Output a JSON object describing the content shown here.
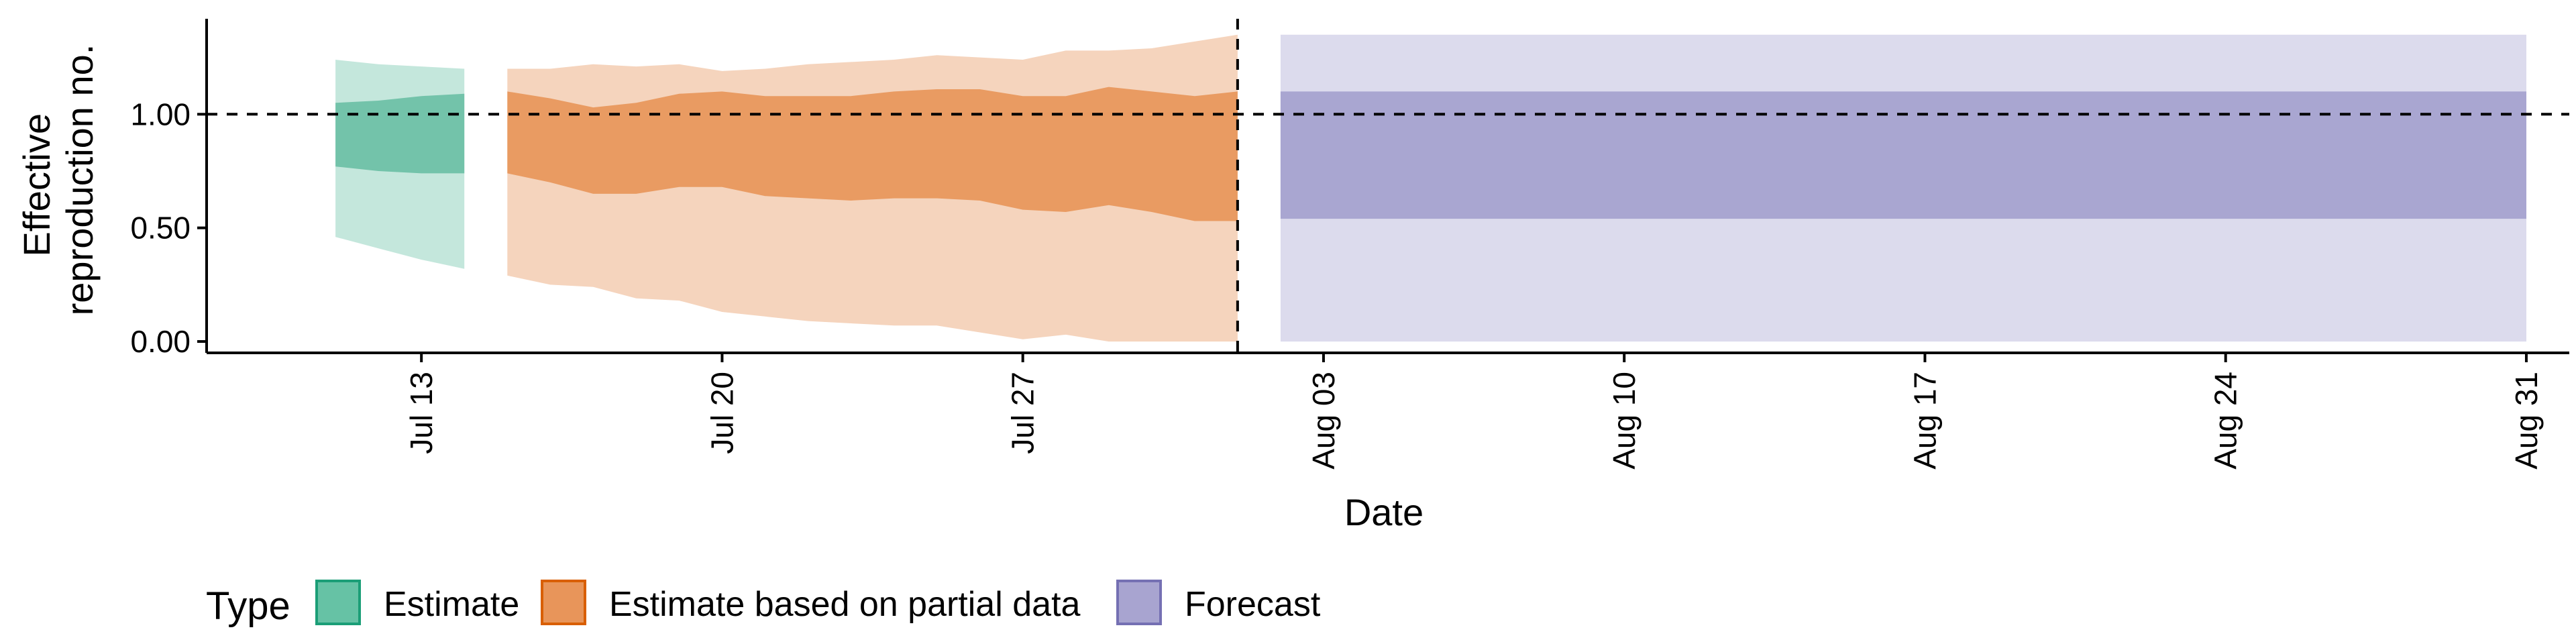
{
  "chart_data": {
    "type": "area",
    "title": "",
    "xlabel": "Date",
    "ylabel_lines": [
      "Effective",
      "reproduction no."
    ],
    "x_axis": {
      "start": "2020-07-08",
      "end": "2020-09-01",
      "ticks": [
        {
          "date": "2020-07-13",
          "label": "Jul 13"
        },
        {
          "date": "2020-07-20",
          "label": "Jul 20"
        },
        {
          "date": "2020-07-27",
          "label": "Jul 27"
        },
        {
          "date": "2020-08-03",
          "label": "Aug 03"
        },
        {
          "date": "2020-08-10",
          "label": "Aug 10"
        },
        {
          "date": "2020-08-17",
          "label": "Aug 17"
        },
        {
          "date": "2020-08-24",
          "label": "Aug 24"
        },
        {
          "date": "2020-08-31",
          "label": "Aug 31"
        }
      ]
    },
    "y_axis": {
      "min": -0.05,
      "max": 1.42,
      "ticks": [
        {
          "value": 0,
          "label": "0.00"
        },
        {
          "value": 0.5,
          "label": "0.50"
        },
        {
          "value": 1.0,
          "label": "1.00"
        }
      ]
    },
    "reference_lines": {
      "horizontal_y": 1.0,
      "vertical_date": "2020-08-01"
    },
    "legend": {
      "title": "Type",
      "position": "bottom-left",
      "items": [
        {
          "label": "Estimate",
          "color": "#66c2a5",
          "border": "#1b9e77"
        },
        {
          "label": "Estimate based on partial data",
          "color": "#e8955a",
          "border": "#d95f02"
        },
        {
          "label": "Forecast",
          "color": "#a8a4d0",
          "border": "#7570b3"
        }
      ]
    },
    "series": [
      {
        "name": "Estimate",
        "inner_color": "#73c3aa",
        "outer_color": "#c4e7dc",
        "points": [
          {
            "date": "2020-07-11",
            "lower90": 0.46,
            "lower50": 0.77,
            "upper50": 1.05,
            "upper90": 1.24
          },
          {
            "date": "2020-07-12",
            "lower90": 0.41,
            "lower50": 0.75,
            "upper50": 1.06,
            "upper90": 1.22
          },
          {
            "date": "2020-07-13",
            "lower90": 0.36,
            "lower50": 0.74,
            "upper50": 1.08,
            "upper90": 1.21
          },
          {
            "date": "2020-07-14",
            "lower90": 0.32,
            "lower50": 0.74,
            "upper50": 1.09,
            "upper90": 1.2
          }
        ]
      },
      {
        "name": "Estimate based on partial data",
        "inner_color": "#e99b62",
        "outer_color": "#f5d4bd",
        "points": [
          {
            "date": "2020-07-15",
            "lower90": 0.29,
            "lower50": 0.74,
            "upper50": 1.1,
            "upper90": 1.2
          },
          {
            "date": "2020-07-16",
            "lower90": 0.25,
            "lower50": 0.7,
            "upper50": 1.07,
            "upper90": 1.2
          },
          {
            "date": "2020-07-17",
            "lower90": 0.24,
            "lower50": 0.65,
            "upper50": 1.03,
            "upper90": 1.22
          },
          {
            "date": "2020-07-18",
            "lower90": 0.19,
            "lower50": 0.65,
            "upper50": 1.05,
            "upper90": 1.21
          },
          {
            "date": "2020-07-19",
            "lower90": 0.18,
            "lower50": 0.68,
            "upper50": 1.09,
            "upper90": 1.22
          },
          {
            "date": "2020-07-20",
            "lower90": 0.13,
            "lower50": 0.68,
            "upper50": 1.1,
            "upper90": 1.19
          },
          {
            "date": "2020-07-21",
            "lower90": 0.11,
            "lower50": 0.64,
            "upper50": 1.08,
            "upper90": 1.2
          },
          {
            "date": "2020-07-22",
            "lower90": 0.09,
            "lower50": 0.63,
            "upper50": 1.08,
            "upper90": 1.22
          },
          {
            "date": "2020-07-23",
            "lower90": 0.08,
            "lower50": 0.62,
            "upper50": 1.08,
            "upper90": 1.23
          },
          {
            "date": "2020-07-24",
            "lower90": 0.07,
            "lower50": 0.63,
            "upper50": 1.1,
            "upper90": 1.24
          },
          {
            "date": "2020-07-25",
            "lower90": 0.07,
            "lower50": 0.63,
            "upper50": 1.11,
            "upper90": 1.26
          },
          {
            "date": "2020-07-26",
            "lower90": 0.04,
            "lower50": 0.62,
            "upper50": 1.11,
            "upper90": 1.25
          },
          {
            "date": "2020-07-27",
            "lower90": 0.01,
            "lower50": 0.58,
            "upper50": 1.08,
            "upper90": 1.24
          },
          {
            "date": "2020-07-28",
            "lower90": 0.03,
            "lower50": 0.57,
            "upper50": 1.08,
            "upper90": 1.28
          },
          {
            "date": "2020-07-29",
            "lower90": 0.0,
            "lower50": 0.6,
            "upper50": 1.12,
            "upper90": 1.28
          },
          {
            "date": "2020-07-30",
            "lower90": 0.0,
            "lower50": 0.57,
            "upper50": 1.1,
            "upper90": 1.29
          },
          {
            "date": "2020-07-31",
            "lower90": 0.0,
            "lower50": 0.53,
            "upper50": 1.08,
            "upper90": 1.32
          },
          {
            "date": "2020-08-01",
            "lower90": 0.0,
            "lower50": 0.53,
            "upper50": 1.1,
            "upper90": 1.35
          }
        ]
      },
      {
        "name": "Forecast",
        "inner_color": "#a9a6d1",
        "outer_color": "#dcdbed",
        "points": [
          {
            "date": "2020-08-02",
            "lower90": 0.0,
            "lower50": 0.54,
            "upper50": 1.1,
            "upper90": 1.35
          },
          {
            "date": "2020-08-31",
            "lower90": 0.0,
            "lower50": 0.54,
            "upper50": 1.1,
            "upper90": 1.35
          }
        ]
      }
    ]
  }
}
